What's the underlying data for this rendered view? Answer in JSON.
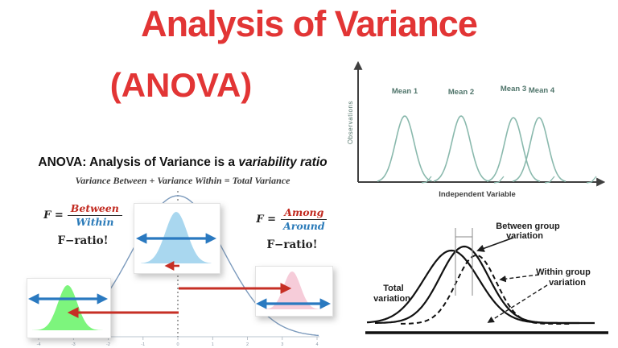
{
  "header": {
    "title": "Analysis of Variance",
    "subtitle": "(ANOVA)"
  },
  "definition": {
    "heading_text": "ANOVA: Analysis of Variance is a ",
    "heading_emphasis": "variability ratio",
    "equation": "Variance Between + Variance Within = Total Variance"
  },
  "formulas": {
    "left": {
      "lhs": "F =",
      "numerator": "Between",
      "denominator": "Within",
      "caption": "F−ratio!"
    },
    "right": {
      "lhs": "F =",
      "numerator": "Among",
      "denominator": "Around",
      "caption": "F−ratio!"
    }
  },
  "observations_chart": {
    "ylabel": "Observations",
    "xlabel": "Independent Variable",
    "curve_labels": [
      "Mean 1",
      "Mean 2",
      "Mean 3",
      "Mean 4"
    ]
  },
  "distribution_plot": {
    "x_ticks": [
      "-4",
      "-3",
      "-2",
      "-1",
      "0",
      "1",
      "2",
      "3",
      "4"
    ]
  },
  "group_variation": {
    "between_line1": "Between group",
    "between_line2": "variation",
    "within_line1": "Within group",
    "within_line2": "variation",
    "total_line1": "Total",
    "total_line2": "variation"
  },
  "colors": {
    "accent_red": "#e23535",
    "formula_red": "#c22a20",
    "formula_blue": "#2b7bb9",
    "teal_curve": "#8ab9ad",
    "steel_curve": "#7d9bbd",
    "arrow_red": "#c62f25",
    "arrow_blue": "#2a79c0",
    "bell_blue": "#a9d7ef",
    "bell_green": "#7df57d",
    "bell_pink": "#f6ccd9"
  }
}
